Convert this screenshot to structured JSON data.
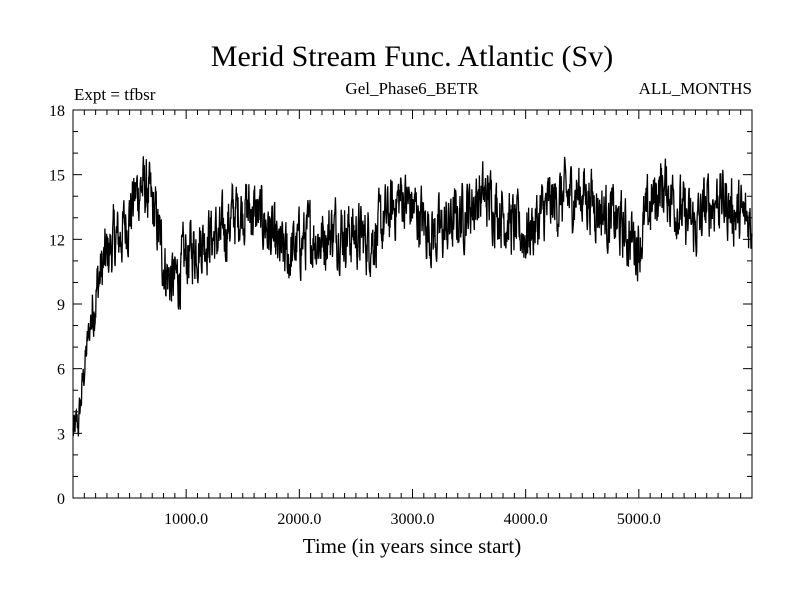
{
  "chart_data": {
    "type": "line",
    "title": "Merid Stream Func. Atlantic (Sv)",
    "subtitle_left": "Expt = tfbsr",
    "subtitle_center": "Gel_Phase6_BETR",
    "subtitle_right": "ALL_MONTHS",
    "xlabel": "Time (in years since start)",
    "ylabel": "",
    "xlim": [
      0,
      6000
    ],
    "ylim": [
      0,
      18
    ],
    "x_ticks": [
      1000,
      2000,
      3000,
      4000,
      5000
    ],
    "x_tick_labels": [
      "1000.0",
      "2000.0",
      "3000.0",
      "4000.0",
      "5000.0"
    ],
    "y_ticks": [
      0,
      3,
      6,
      9,
      12,
      15,
      18
    ],
    "y_tick_labels": [
      "0",
      "3",
      "6",
      "9",
      "12",
      "15",
      "18"
    ],
    "grid": false,
    "color": "#000000",
    "series": [
      {
        "name": "Merid Stream Func. Atlantic",
        "x": [
          0,
          50,
          100,
          150,
          200,
          250,
          300,
          350,
          400,
          450,
          500,
          550,
          600,
          650,
          700,
          750,
          800,
          850,
          900,
          950,
          1000,
          1100,
          1200,
          1300,
          1400,
          1500,
          1600,
          1700,
          1800,
          1900,
          2000,
          2100,
          2200,
          2300,
          2400,
          2500,
          2600,
          2700,
          2800,
          2900,
          3000,
          3100,
          3200,
          3300,
          3400,
          3500,
          3600,
          3700,
          3800,
          3900,
          4000,
          4100,
          4200,
          4300,
          4400,
          4500,
          4600,
          4700,
          4800,
          4900,
          5000,
          5100,
          5200,
          5300,
          5400,
          5500,
          5600,
          5700,
          5800,
          5900,
          6000
        ],
        "y": [
          3.0,
          3.5,
          6.0,
          8.0,
          9.5,
          10.5,
          11.2,
          11.8,
          12.0,
          12.5,
          13.2,
          14.0,
          14.5,
          14.2,
          13.5,
          12.5,
          11.0,
          10.2,
          10.0,
          10.5,
          11.2,
          11.8,
          12.2,
          12.0,
          13.0,
          13.5,
          13.2,
          12.8,
          11.5,
          11.2,
          11.8,
          12.2,
          12.0,
          12.5,
          12.4,
          12.2,
          12.0,
          12.3,
          13.2,
          14.0,
          13.5,
          12.8,
          12.2,
          12.5,
          13.0,
          13.5,
          14.0,
          13.8,
          13.2,
          12.5,
          12.2,
          12.8,
          13.5,
          13.8,
          14.0,
          14.2,
          13.8,
          13.2,
          12.8,
          12.2,
          11.8,
          13.5,
          14.5,
          14.0,
          13.0,
          12.5,
          13.5,
          14.0,
          13.5,
          13.0,
          12.8
        ],
        "noise_amplitude": 1.2
      }
    ]
  }
}
